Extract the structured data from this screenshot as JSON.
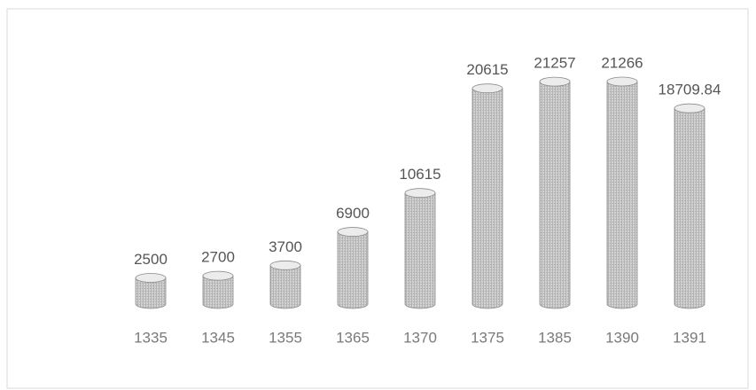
{
  "chart_data": {
    "type": "bar",
    "shape": "cylinder",
    "categories": [
      "1335",
      "1345",
      "1355",
      "1365",
      "1370",
      "1375",
      "1385",
      "1390",
      "1391"
    ],
    "values": [
      2500,
      2700,
      3700,
      6900,
      10615,
      20615,
      21257,
      21266,
      18709.84
    ],
    "color": "#b8b8b8",
    "grid": false
  }
}
